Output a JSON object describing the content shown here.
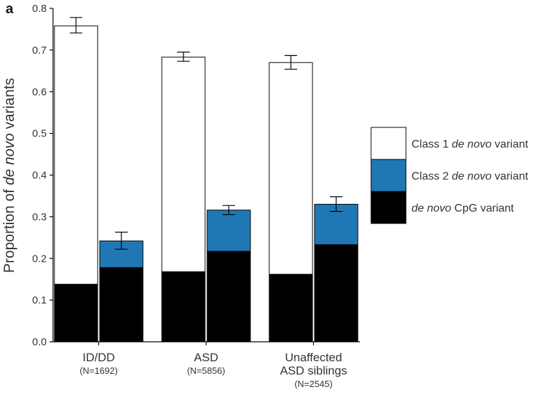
{
  "chart_data": {
    "type": "bar",
    "panel_label": "a",
    "ylabel_parts": [
      "Proportion of ",
      "de novo",
      " variants"
    ],
    "ylim": [
      0,
      0.8
    ],
    "yticks": [
      "0.0",
      "0.1",
      "0.2",
      "0.3",
      "0.4",
      "0.5",
      "0.6",
      "0.7",
      "0.8"
    ],
    "grid": false,
    "colors": {
      "class1": "#ffffff",
      "class2": "#1f78b4",
      "cpg": "#000000"
    },
    "groups": [
      {
        "label": [
          "ID/DD"
        ],
        "n": "(N=1692)",
        "bars": [
          {
            "cpg": 0.138,
            "total": 0.758,
            "top": "class1",
            "err": [
              0.741,
              0.778
            ]
          },
          {
            "cpg": 0.178,
            "total": 0.242,
            "top": "class2",
            "err": [
              0.222,
              0.263
            ]
          }
        ]
      },
      {
        "label": [
          "ASD"
        ],
        "n": "(N=5856)",
        "bars": [
          {
            "cpg": 0.168,
            "total": 0.683,
            "top": "class1",
            "err": [
              0.673,
              0.695
            ]
          },
          {
            "cpg": 0.217,
            "total": 0.316,
            "top": "class2",
            "err": [
              0.305,
              0.327
            ]
          }
        ]
      },
      {
        "label": [
          "Unaffected",
          "ASD siblings"
        ],
        "n": "(N=2545)",
        "bars": [
          {
            "cpg": 0.162,
            "total": 0.67,
            "top": "class1",
            "err": [
              0.654,
              0.687
            ]
          },
          {
            "cpg": 0.233,
            "total": 0.33,
            "top": "class2",
            "err": [
              0.313,
              0.348
            ]
          }
        ]
      }
    ],
    "legend": {
      "placement": "right",
      "items": [
        {
          "key": "class1",
          "parts": [
            {
              "t": "Class 1 ",
              "i": false
            },
            {
              "t": "de novo",
              "i": true
            },
            {
              "t": " variant",
              "i": false
            }
          ]
        },
        {
          "key": "class2",
          "parts": [
            {
              "t": "Class 2 ",
              "i": false
            },
            {
              "t": "de novo",
              "i": true
            },
            {
              "t": " variant",
              "i": false
            }
          ]
        },
        {
          "key": "cpg",
          "parts": [
            {
              "t": "de novo",
              "i": true
            },
            {
              "t": " CpG variant",
              "i": false
            }
          ]
        }
      ]
    }
  }
}
